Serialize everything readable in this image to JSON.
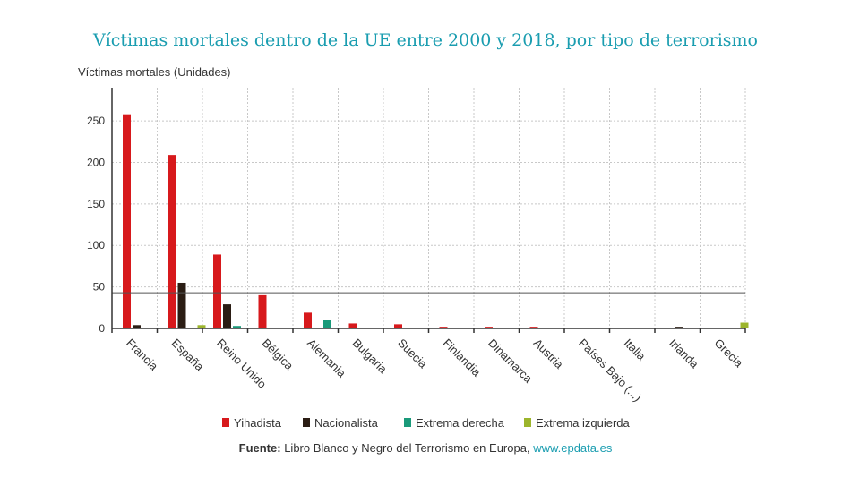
{
  "chart_data": {
    "type": "bar",
    "title": "Víctimas mortales dentro de la UE entre 2000 y 2018, por tipo de terrorismo",
    "ylabel": "Víctimas mortales (Unidades)",
    "xlabel": "",
    "ylim": [
      0,
      290
    ],
    "yticks": [
      0,
      50,
      100,
      150,
      200,
      250
    ],
    "grid": true,
    "reference_line": 43,
    "legend_position": "bottom",
    "categories": [
      "Francia",
      "España",
      "Reino Unido",
      "Bélgica",
      "Alemania",
      "Bulgaria",
      "Suecia",
      "Finlandia",
      "Dinamarca",
      "Austria",
      "Países Bajo (...)",
      "Italia",
      "Irlanda",
      "Grecia"
    ],
    "series": [
      {
        "name": "Yihadista",
        "color": "#d7191c",
        "values": [
          258,
          209,
          89,
          40,
          19,
          6,
          5,
          2,
          2,
          2,
          1,
          0,
          0,
          0
        ]
      },
      {
        "name": "Nacionalista",
        "color": "#2b1d14",
        "values": [
          4,
          55,
          29,
          0,
          0,
          0,
          0,
          0,
          0,
          0,
          0,
          0,
          2,
          0
        ]
      },
      {
        "name": "Extrema derecha",
        "color": "#1a9a7a",
        "values": [
          0,
          0,
          3,
          0,
          10,
          0,
          0,
          0,
          0,
          0,
          0,
          0,
          0,
          0
        ]
      },
      {
        "name": "Extrema izquierda",
        "color": "#9cb52c",
        "values": [
          0,
          4,
          0,
          0,
          0,
          0,
          0,
          0,
          0,
          0,
          0,
          1,
          0,
          7
        ]
      }
    ]
  },
  "source": {
    "label": "Fuente:",
    "text": "Libro Blanco y Negro del Terrorismo en Europa,",
    "link": "www.epdata.es"
  }
}
